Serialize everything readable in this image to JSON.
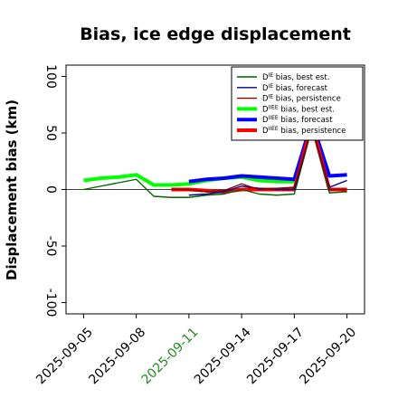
{
  "chart_data": {
    "type": "line",
    "title": "Bias, ice edge displacement",
    "xlabel": "",
    "ylabel": "Displacement bias (km)",
    "ylim": [
      -110,
      110
    ],
    "yticks": [
      -100,
      -50,
      0,
      50,
      100
    ],
    "xlim": [
      "2025-09-04T00:00",
      "2025-09-21T00:00"
    ],
    "xticks": [
      "2025-09-05",
      "2025-09-08",
      "2025-09-11",
      "2025-09-14",
      "2025-09-17",
      "2025-09-20"
    ],
    "highlight_xtick": "2025-09-11",
    "highlight_color": "#228b22",
    "zero_line": true,
    "legend_position": "top-right",
    "series": [
      {
        "name": "D^IE bias, best est.",
        "legend_base": "D",
        "legend_sup": "IE",
        "legend_rest": " bias, best est.",
        "color": "#006400",
        "width": 1.4,
        "x": [
          "2025-09-05",
          "2025-09-06",
          "2025-09-07",
          "2025-09-08",
          "2025-09-09",
          "2025-09-10",
          "2025-09-11",
          "2025-09-12",
          "2025-09-13",
          "2025-09-14",
          "2025-09-15",
          "2025-09-16",
          "2025-09-17",
          "2025-09-18",
          "2025-09-19",
          "2025-09-20"
        ],
        "values": [
          0,
          3,
          6,
          9,
          -6,
          -7,
          -7,
          -5,
          -4,
          0,
          -4,
          -5,
          -4,
          55,
          -3,
          -2
        ]
      },
      {
        "name": "D^IE bias, forecast",
        "legend_base": "D",
        "legend_sup": "IE",
        "legend_rest": " bias, forecast",
        "color": "#00008b",
        "width": 1.4,
        "x": [
          "2025-09-11",
          "2025-09-12",
          "2025-09-13",
          "2025-09-14",
          "2025-09-15",
          "2025-09-16",
          "2025-09-17",
          "2025-09-18",
          "2025-09-19",
          "2025-09-20"
        ],
        "values": [
          -5,
          -4,
          -2,
          3,
          1,
          0,
          0,
          55,
          2,
          8
        ]
      },
      {
        "name": "D^IE bias, persistence",
        "legend_base": "D",
        "legend_sup": "IE",
        "legend_rest": " bias, persistence",
        "color": "#8b0000",
        "width": 1.4,
        "x": [
          "2025-09-10",
          "2025-09-11",
          "2025-09-12",
          "2025-09-13",
          "2025-09-14",
          "2025-09-15",
          "2025-09-16",
          "2025-09-17",
          "2025-09-18",
          "2025-09-19",
          "2025-09-20"
        ],
        "values": [
          0,
          0,
          -2,
          -1,
          5,
          0,
          1,
          2,
          55,
          0,
          0
        ]
      },
      {
        "name": "D^IIEE bias, best est.",
        "legend_base": "D",
        "legend_sup": "IIEE",
        "legend_rest": " bias, best est.",
        "color": "#00ff00",
        "width": 4,
        "x": [
          "2025-09-05",
          "2025-09-06",
          "2025-09-07",
          "2025-09-08",
          "2025-09-09",
          "2025-09-10",
          "2025-09-11",
          "2025-09-12",
          "2025-09-13",
          "2025-09-14",
          "2025-09-15",
          "2025-09-16",
          "2025-09-17"
        ],
        "values": [
          8,
          10,
          11,
          13,
          4,
          4,
          5,
          8,
          10,
          11,
          8,
          7,
          7
        ]
      },
      {
        "name": "D^IIEE bias, forecast",
        "legend_base": "D",
        "legend_sup": "IIEE",
        "legend_rest": " bias, forecast",
        "color": "#0000ff",
        "width": 4,
        "x": [
          "2025-09-11",
          "2025-09-12",
          "2025-09-13",
          "2025-09-14",
          "2025-09-15",
          "2025-09-16",
          "2025-09-17",
          "2025-09-18",
          "2025-09-19",
          "2025-09-20"
        ],
        "values": [
          7,
          9,
          10,
          12,
          11,
          10,
          9,
          60,
          12,
          13
        ]
      },
      {
        "name": "D^IIEE bias, persistence",
        "legend_base": "D",
        "legend_sup": "IIEE",
        "legend_rest": " bias, persistence",
        "color": "#ff0000",
        "width": 4,
        "x": [
          "2025-09-10",
          "2025-09-11",
          "2025-09-12",
          "2025-09-13",
          "2025-09-14",
          "2025-09-15",
          "2025-09-16",
          "2025-09-17",
          "2025-09-18",
          "2025-09-19",
          "2025-09-20"
        ],
        "values": [
          0,
          0,
          -1,
          -2,
          0,
          0,
          0,
          0,
          58,
          0,
          0
        ]
      }
    ]
  }
}
